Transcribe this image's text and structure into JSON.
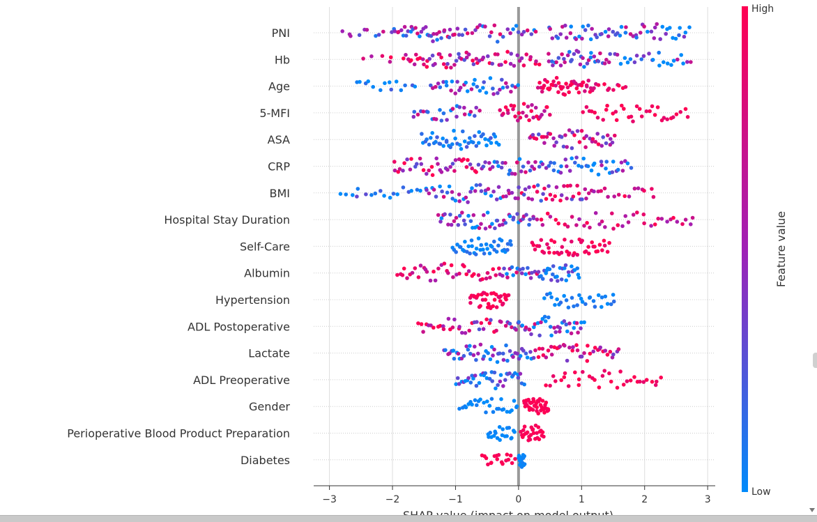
{
  "chart_data": {
    "type": "scatter",
    "subtype": "shap-beeswarm",
    "xlabel": "SHAP value (impact on model output)",
    "xlim": [
      -3.25,
      3.12
    ],
    "xticks": [
      -3,
      -2,
      -1,
      0,
      1,
      2,
      3
    ],
    "xtick_labels": [
      "−3",
      "−2",
      "−1",
      "0",
      "1",
      "2",
      "3"
    ],
    "grid": true,
    "colorbar": {
      "label": "Feature value",
      "high_label": "High",
      "low_label": "Low",
      "low_color": "#008bfb",
      "mid_color": "#a020b6",
      "high_color": "#ff0052"
    },
    "features": [
      {
        "name": "PNI",
        "min": -2.85,
        "max": 2.72,
        "segments": [
          {
            "from": -2.85,
            "to": -2.0,
            "count": 10,
            "val": 0.4,
            "spread": 0.8
          },
          {
            "from": -2.0,
            "to": -1.0,
            "count": 34,
            "val": 0.45,
            "spread": 1.0
          },
          {
            "from": -1.0,
            "to": 0.3,
            "count": 28,
            "val": 0.4,
            "spread": 1.0
          },
          {
            "from": 0.45,
            "to": 1.5,
            "count": 28,
            "val": 0.3,
            "spread": 1.0
          },
          {
            "from": 1.5,
            "to": 2.72,
            "count": 30,
            "val": 0.25,
            "spread": 1.0
          }
        ]
      },
      {
        "name": "Hb",
        "min": -2.5,
        "max": 2.75,
        "segments": [
          {
            "from": -2.5,
            "to": -1.8,
            "count": 6,
            "val": 0.85,
            "spread": 0.6
          },
          {
            "from": -1.8,
            "to": -0.6,
            "count": 38,
            "val": 0.75,
            "spread": 1.0
          },
          {
            "from": -0.6,
            "to": 0.35,
            "count": 24,
            "val": 0.7,
            "spread": 1.0
          },
          {
            "from": 0.45,
            "to": 1.4,
            "count": 34,
            "val": 0.3,
            "spread": 1.0
          },
          {
            "from": 1.4,
            "to": 2.75,
            "count": 26,
            "val": 0.3,
            "spread": 1.0
          }
        ]
      },
      {
        "name": "Age",
        "min": -2.6,
        "max": 1.75,
        "segments": [
          {
            "from": -2.6,
            "to": -1.6,
            "count": 14,
            "val": 0.05,
            "spread": 0.4
          },
          {
            "from": -1.4,
            "to": 0.0,
            "count": 38,
            "val": 0.25,
            "spread": 1.0
          },
          {
            "from": 0.3,
            "to": 1.2,
            "count": 46,
            "val": 0.95,
            "spread": 0.4
          },
          {
            "from": 1.2,
            "to": 1.75,
            "count": 10,
            "val": 0.9,
            "spread": 0.5
          }
        ]
      },
      {
        "name": "5-MFI",
        "min": -1.7,
        "max": 2.7,
        "segments": [
          {
            "from": -1.7,
            "to": -0.6,
            "count": 26,
            "val": 0.4,
            "spread": 0.8
          },
          {
            "from": -0.3,
            "to": 0.5,
            "count": 30,
            "val": 0.85,
            "spread": 0.5
          },
          {
            "from": 1.0,
            "to": 2.7,
            "count": 34,
            "val": 0.95,
            "spread": 0.2
          }
        ]
      },
      {
        "name": "ASA",
        "min": -1.55,
        "max": 1.55,
        "segments": [
          {
            "from": -1.55,
            "to": -0.3,
            "count": 46,
            "val": 0.05,
            "spread": 0.4
          },
          {
            "from": 0.15,
            "to": 1.55,
            "count": 44,
            "val": 0.65,
            "spread": 0.8
          }
        ]
      },
      {
        "name": "CRP",
        "min": -2.0,
        "max": 1.8,
        "segments": [
          {
            "from": -2.0,
            "to": -0.6,
            "count": 38,
            "val": 0.75,
            "spread": 1.0
          },
          {
            "from": -0.6,
            "to": 0.3,
            "count": 26,
            "val": 0.4,
            "spread": 1.0
          },
          {
            "from": 0.3,
            "to": 1.8,
            "count": 40,
            "val": 0.2,
            "spread": 0.8
          }
        ]
      },
      {
        "name": "BMI",
        "min": -2.85,
        "max": 2.2,
        "segments": [
          {
            "from": -2.85,
            "to": -1.5,
            "count": 18,
            "val": 0.1,
            "spread": 0.5
          },
          {
            "from": -1.5,
            "to": 0.0,
            "count": 40,
            "val": 0.3,
            "spread": 1.0
          },
          {
            "from": 0.0,
            "to": 1.2,
            "count": 36,
            "val": 0.6,
            "spread": 1.0
          },
          {
            "from": 1.2,
            "to": 2.2,
            "count": 14,
            "val": 0.85,
            "spread": 0.5
          }
        ]
      },
      {
        "name": "Hospital Stay Duration",
        "min": -1.3,
        "max": 2.8,
        "segments": [
          {
            "from": -1.3,
            "to": 0.3,
            "count": 50,
            "val": 0.3,
            "spread": 0.9
          },
          {
            "from": 0.3,
            "to": 2.8,
            "count": 40,
            "val": 0.8,
            "spread": 0.6
          }
        ]
      },
      {
        "name": "Self-Care",
        "min": -1.05,
        "max": 1.45,
        "segments": [
          {
            "from": -1.05,
            "to": -0.1,
            "count": 40,
            "val": 0.05,
            "spread": 0.2
          },
          {
            "from": 0.2,
            "to": 1.45,
            "count": 44,
            "val": 0.95,
            "spread": 0.2
          }
        ]
      },
      {
        "name": "Albumin",
        "min": -1.95,
        "max": 0.98,
        "segments": [
          {
            "from": -1.95,
            "to": -0.3,
            "count": 40,
            "val": 0.85,
            "spread": 0.6
          },
          {
            "from": -0.3,
            "to": 0.3,
            "count": 20,
            "val": 0.4,
            "spread": 1.0
          },
          {
            "from": 0.3,
            "to": 0.98,
            "count": 30,
            "val": 0.15,
            "spread": 0.5
          }
        ]
      },
      {
        "name": "Hypertension",
        "min": -0.78,
        "max": 1.55,
        "segments": [
          {
            "from": -0.78,
            "to": -0.15,
            "count": 38,
            "val": 0.95,
            "spread": 0.2
          },
          {
            "from": 0.4,
            "to": 1.55,
            "count": 30,
            "val": 0.05,
            "spread": 0.2
          }
        ]
      },
      {
        "name": "ADL Postoperative",
        "min": -1.6,
        "max": 1.05,
        "segments": [
          {
            "from": -1.6,
            "to": -0.2,
            "count": 34,
            "val": 0.7,
            "spread": 1.0
          },
          {
            "from": -0.2,
            "to": 1.05,
            "count": 44,
            "val": 0.3,
            "spread": 1.0
          }
        ]
      },
      {
        "name": "Lactate",
        "min": -1.2,
        "max": 1.6,
        "segments": [
          {
            "from": -1.2,
            "to": 0.25,
            "count": 50,
            "val": 0.25,
            "spread": 0.8
          },
          {
            "from": 0.25,
            "to": 1.6,
            "count": 40,
            "val": 0.75,
            "spread": 0.8
          }
        ]
      },
      {
        "name": "ADL Preoperative",
        "min": -1.0,
        "max": 2.3,
        "segments": [
          {
            "from": -1.0,
            "to": 0.1,
            "count": 40,
            "val": 0.2,
            "spread": 0.7
          },
          {
            "from": 0.4,
            "to": 2.3,
            "count": 34,
            "val": 0.95,
            "spread": 0.2
          }
        ]
      },
      {
        "name": "Gender",
        "min": -0.95,
        "max": 0.48,
        "segments": [
          {
            "from": -0.95,
            "to": 0.0,
            "count": 28,
            "val": 0.02,
            "spread": 0.1
          },
          {
            "from": 0.08,
            "to": 0.48,
            "count": 40,
            "val": 0.98,
            "spread": 0.1
          }
        ]
      },
      {
        "name": "Perioperative Blood Product Preparation",
        "min": -0.5,
        "max": 0.4,
        "segments": [
          {
            "from": -0.5,
            "to": -0.05,
            "count": 20,
            "val": 0.02,
            "spread": 0.1
          },
          {
            "from": 0.03,
            "to": 0.4,
            "count": 28,
            "val": 0.98,
            "spread": 0.1
          }
        ]
      },
      {
        "name": "Diabetes",
        "min": -0.58,
        "max": 0.1,
        "segments": [
          {
            "from": -0.58,
            "to": -0.05,
            "count": 18,
            "val": 0.98,
            "spread": 0.1
          },
          {
            "from": 0.0,
            "to": 0.1,
            "count": 20,
            "val": 0.02,
            "spread": 0.1
          }
        ]
      }
    ]
  }
}
